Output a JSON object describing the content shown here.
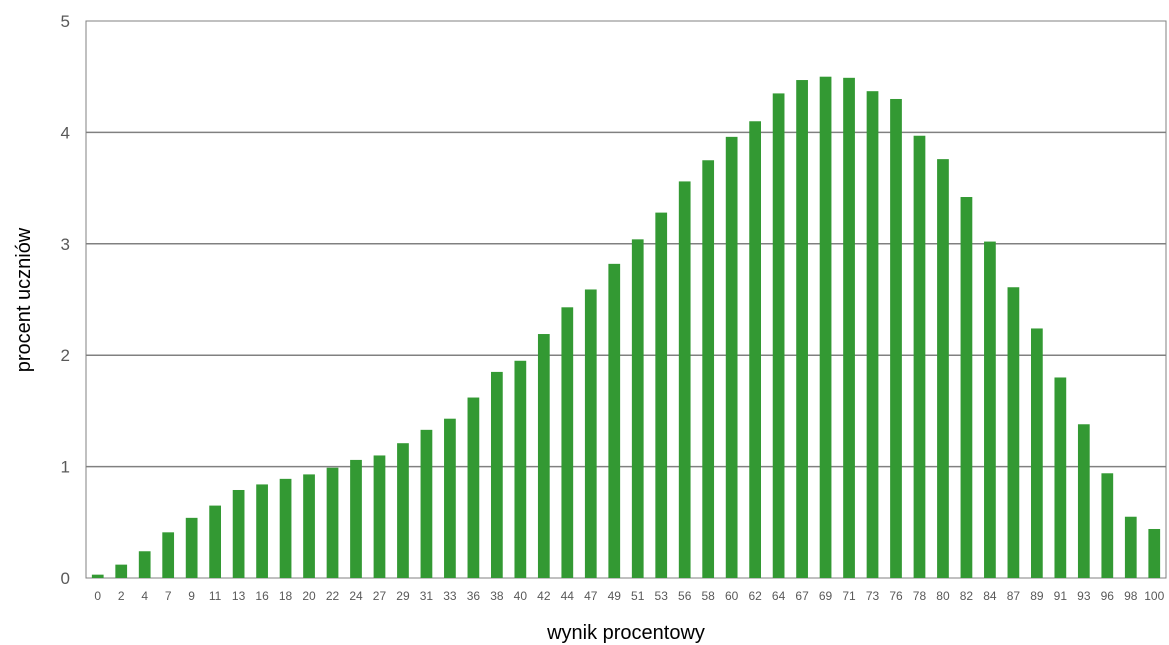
{
  "chart_data": {
    "type": "bar",
    "xlabel": "wynik procentowy",
    "ylabel": "procent uczniów",
    "ylim": [
      0,
      5
    ],
    "yticks": [
      "0",
      "1",
      "2",
      "3",
      "4",
      "5"
    ],
    "grid": true,
    "bar_color": "#339933",
    "categories": [
      "0",
      "2",
      "4",
      "7",
      "9",
      "11",
      "13",
      "16",
      "18",
      "20",
      "22",
      "24",
      "27",
      "29",
      "31",
      "33",
      "36",
      "38",
      "40",
      "42",
      "44",
      "47",
      "49",
      "51",
      "53",
      "56",
      "58",
      "60",
      "62",
      "64",
      "67",
      "69",
      "71",
      "73",
      "76",
      "78",
      "80",
      "82",
      "84",
      "87",
      "89",
      "91",
      "93",
      "96",
      "98",
      "100"
    ],
    "values": [
      0.03,
      0.12,
      0.24,
      0.41,
      0.54,
      0.65,
      0.79,
      0.84,
      0.89,
      0.93,
      0.99,
      1.06,
      1.1,
      1.21,
      1.33,
      1.43,
      1.62,
      1.85,
      1.95,
      2.19,
      2.43,
      2.59,
      2.82,
      3.04,
      3.28,
      3.56,
      3.75,
      3.96,
      4.1,
      4.35,
      4.47,
      4.5,
      4.49,
      4.37,
      4.3,
      3.97,
      3.76,
      3.42,
      3.02,
      2.61,
      2.24,
      1.8,
      1.38,
      0.94,
      0.55,
      0.44
    ]
  }
}
